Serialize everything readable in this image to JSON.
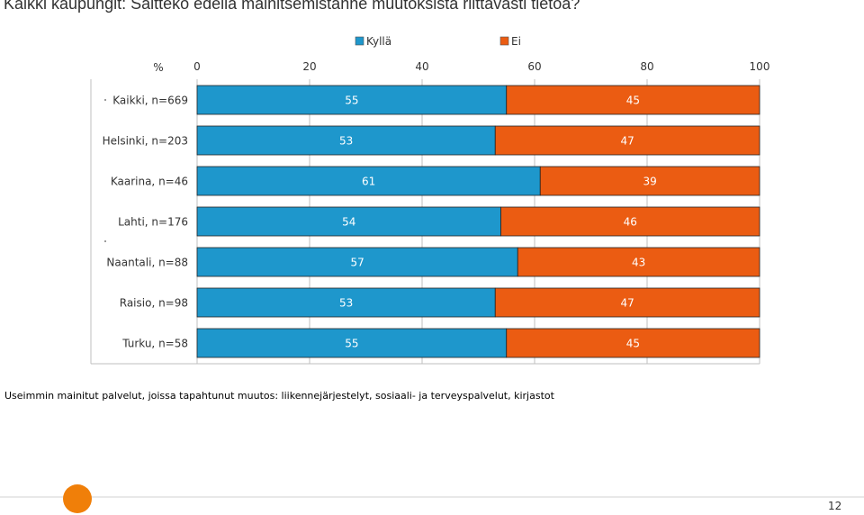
{
  "page": {
    "title": "Kaikki kaupungit: Saitteko edellä mainitsemistanne muutoksista riittävästi tietoa?",
    "note": "Useimmin mainitut palvelut, joissa tapahtunut muutos: liikennejärjestelyt, sosiaali- ja terveyspalvelut, kirjastot",
    "page_number": "12"
  },
  "colors": {
    "yes": "#1e97cc",
    "no": "#eb5c12",
    "accent": "#f07f09"
  },
  "chart_data": {
    "type": "bar",
    "orientation": "horizontal",
    "stacked": true,
    "axis_unit_label": "%",
    "xlim": [
      0,
      100
    ],
    "xticks": [
      "0",
      "20",
      "40",
      "60",
      "80",
      "100"
    ],
    "grid": true,
    "legend_position": "top",
    "categories": [
      "Kaikki, n=669",
      "Helsinki, n=203",
      "Kaarina, n=46",
      "Lahti, n=176",
      "Naantali, n=88",
      "Raisio, n=98",
      "Turku, n=58"
    ],
    "series": [
      {
        "name": "Kyllä",
        "values": [
          55,
          53,
          61,
          54,
          57,
          53,
          55
        ]
      },
      {
        "name": "Ei",
        "values": [
          45,
          47,
          39,
          46,
          43,
          47,
          45
        ]
      }
    ]
  }
}
